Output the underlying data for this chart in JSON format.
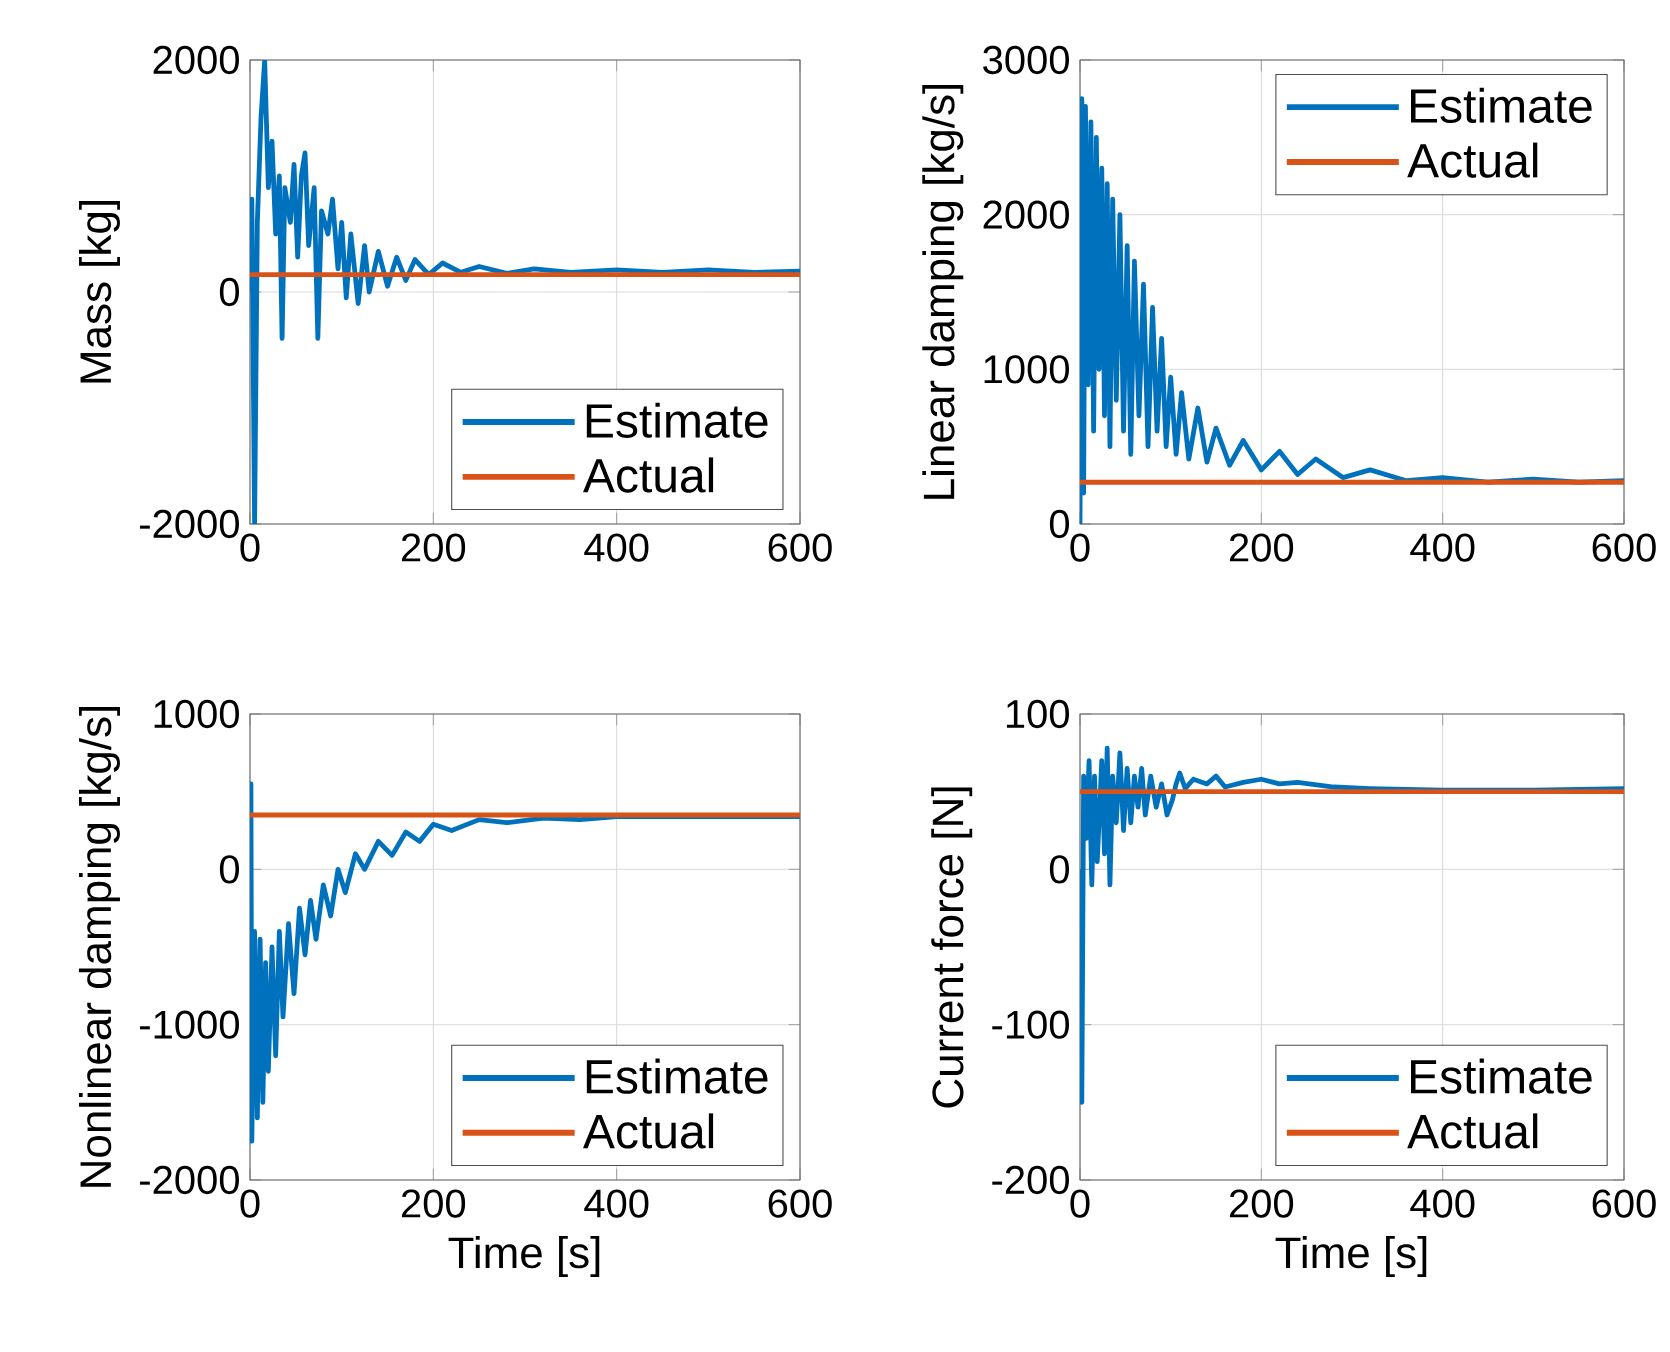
{
  "chart_data": [
    {
      "type": "line",
      "ylabel": "Mass [kg]",
      "xlim": [
        0,
        600
      ],
      "xticks": [
        0,
        200,
        400,
        600
      ],
      "ylim": [
        -2000,
        2000
      ],
      "yticks": [
        -2000,
        0,
        2000
      ],
      "grid": true,
      "legend": "bottom right",
      "series": [
        {
          "name": "Estimate",
          "color": "#0072bd",
          "x": [
            0,
            2,
            5,
            8,
            12,
            16,
            20,
            24,
            28,
            32,
            35,
            38,
            44,
            48,
            52,
            56,
            60,
            64,
            70,
            74,
            78,
            85,
            90,
            96,
            100,
            105,
            110,
            118,
            125,
            130,
            140,
            150,
            160,
            170,
            180,
            195,
            210,
            230,
            250,
            280,
            310,
            350,
            400,
            450,
            500,
            550,
            600
          ],
          "values": [
            0,
            800,
            -2000,
            600,
            1500,
            2000,
            900,
            1300,
            500,
            1000,
            -400,
            900,
            600,
            1100,
            300,
            1000,
            1200,
            400,
            900,
            -400,
            700,
            500,
            800,
            200,
            600,
            -50,
            500,
            -100,
            400,
            0,
            350,
            50,
            300,
            100,
            280,
            150,
            250,
            170,
            220,
            160,
            200,
            170,
            190,
            170,
            190,
            170,
            180
          ]
        },
        {
          "name": "Actual",
          "color": "#d95319",
          "x": [
            0,
            600
          ],
          "values": [
            150,
            150
          ]
        }
      ]
    },
    {
      "type": "line",
      "ylabel": "Linear damping [kg/s]",
      "xlim": [
        0,
        600
      ],
      "xticks": [
        0,
        200,
        400,
        600
      ],
      "ylim": [
        0,
        3000
      ],
      "yticks": [
        0,
        1000,
        2000,
        3000
      ],
      "grid": true,
      "legend": "top right",
      "series": [
        {
          "name": "Estimate",
          "color": "#0072bd",
          "x": [
            0,
            2,
            4,
            6,
            9,
            12,
            15,
            18,
            21,
            24,
            27,
            30,
            33,
            36,
            40,
            44,
            48,
            52,
            56,
            60,
            65,
            70,
            75,
            80,
            85,
            90,
            95,
            100,
            106,
            112,
            120,
            130,
            140,
            150,
            165,
            180,
            200,
            220,
            240,
            260,
            290,
            320,
            360,
            400,
            450,
            500,
            550,
            600
          ],
          "values": [
            0,
            2750,
            200,
            2700,
            900,
            2600,
            600,
            2500,
            1000,
            2300,
            700,
            2200,
            500,
            2100,
            800,
            2000,
            600,
            1800,
            450,
            1700,
            700,
            1550,
            500,
            1400,
            600,
            1200,
            500,
            950,
            450,
            850,
            420,
            750,
            400,
            620,
            380,
            540,
            350,
            470,
            320,
            420,
            300,
            350,
            280,
            300,
            270,
            290,
            270,
            280
          ]
        },
        {
          "name": "Actual",
          "color": "#d95319",
          "x": [
            0,
            600
          ],
          "values": [
            270,
            270
          ]
        }
      ]
    },
    {
      "type": "line",
      "xlabel": "Time [s]",
      "ylabel": "Nonlinear damping [kg/s]",
      "xlim": [
        0,
        600
      ],
      "xticks": [
        0,
        200,
        400,
        600
      ],
      "ylim": [
        -2000,
        1000
      ],
      "yticks": [
        -2000,
        -1000,
        0,
        1000
      ],
      "grid": true,
      "legend": "bottom right",
      "series": [
        {
          "name": "Estimate",
          "color": "#0072bd",
          "x": [
            0,
            1,
            2,
            5,
            8,
            11,
            14,
            17,
            20,
            24,
            28,
            32,
            36,
            42,
            48,
            54,
            60,
            66,
            72,
            80,
            88,
            96,
            104,
            115,
            125,
            140,
            155,
            170,
            185,
            200,
            220,
            250,
            280,
            320,
            360,
            400,
            450,
            500,
            550,
            600
          ],
          "values": [
            0,
            550,
            -1750,
            -400,
            -1600,
            -450,
            -1500,
            -600,
            -1300,
            -500,
            -1200,
            -400,
            -950,
            -350,
            -800,
            -250,
            -550,
            -200,
            -450,
            -100,
            -300,
            0,
            -150,
            100,
            0,
            180,
            90,
            240,
            180,
            290,
            250,
            320,
            300,
            330,
            320,
            340,
            340,
            340,
            340,
            340
          ]
        },
        {
          "name": "Actual",
          "color": "#d95319",
          "x": [
            0,
            600
          ],
          "values": [
            350,
            350
          ]
        }
      ]
    },
    {
      "type": "line",
      "xlabel": "Time [s]",
      "ylabel": "Current force [N]",
      "xlim": [
        0,
        600
      ],
      "xticks": [
        0,
        200,
        400,
        600
      ],
      "ylim": [
        -200,
        100
      ],
      "yticks": [
        -200,
        -100,
        0,
        100
      ],
      "grid": true,
      "legend": "bottom right",
      "series": [
        {
          "name": "Estimate",
          "color": "#0072bd",
          "x": [
            0,
            2,
            4,
            7,
            10,
            13,
            16,
            19,
            24,
            27,
            30,
            33,
            36,
            40,
            44,
            48,
            52,
            56,
            60,
            64,
            68,
            72,
            78,
            84,
            90,
            96,
            102,
            106,
            110,
            116,
            125,
            140,
            150,
            160,
            180,
            200,
            220,
            240,
            280,
            320,
            400,
            500,
            600
          ],
          "values": [
            0,
            -150,
            60,
            20,
            70,
            -10,
            60,
            5,
            70,
            10,
            78,
            -10,
            60,
            30,
            75,
            25,
            65,
            30,
            60,
            40,
            65,
            35,
            60,
            40,
            55,
            35,
            45,
            55,
            62,
            52,
            58,
            55,
            60,
            53,
            56,
            58,
            55,
            56,
            53,
            52,
            51,
            51,
            52
          ]
        },
        {
          "name": "Actual",
          "color": "#d95319",
          "x": [
            0,
            600
          ],
          "values": [
            50,
            50
          ]
        }
      ]
    }
  ]
}
